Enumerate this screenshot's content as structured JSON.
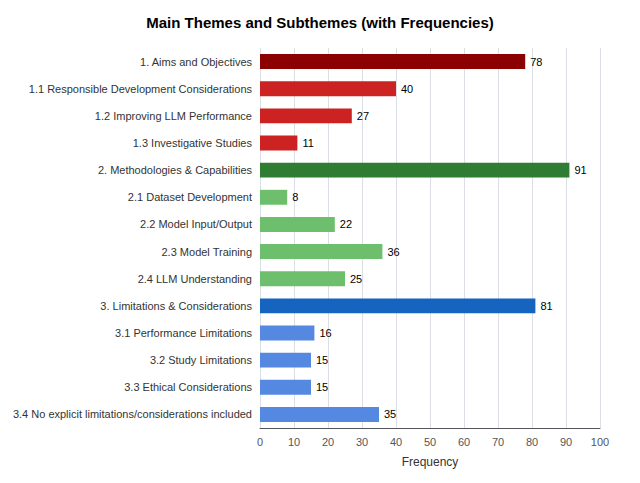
{
  "chart_data": {
    "type": "bar",
    "orientation": "horizontal",
    "title": "Main Themes and Subthemes (with Frequencies)",
    "xlabel": "Frequency",
    "categories": [
      "1. Aims and Objectives",
      "1.1 Responsible Development Considerations",
      "1.2 Improving LLM Performance",
      "1.3 Investigative Studies",
      "2. Methodologies & Capabilities",
      "2.1 Dataset Development",
      "2.2 Model Input/Output",
      "2.3 Model Training",
      "2.4 LLM Understanding",
      "3. Limitations & Considerations",
      "3.1 Performance Limitations",
      "3.2 Study Limitations",
      "3.3 Ethical Considerations",
      "3.4 No explicit limitations/considerations included"
    ],
    "values": [
      78,
      40,
      27,
      11,
      91,
      8,
      22,
      36,
      25,
      81,
      16,
      15,
      15,
      35
    ],
    "colors": [
      "#8B0000",
      "#CC2222",
      "#CC2222",
      "#CC2222",
      "#2E7D32",
      "#6DBF6D",
      "#6DBF6D",
      "#6DBF6D",
      "#6DBF6D",
      "#1565C0",
      "#5588E0",
      "#5588E0",
      "#5588E0",
      "#5588E0"
    ],
    "xlim": [
      0,
      100
    ],
    "xticks": [
      0,
      10,
      20,
      30,
      40,
      50,
      60,
      70,
      80,
      90,
      100
    ],
    "grid": true,
    "data_labels": true
  }
}
